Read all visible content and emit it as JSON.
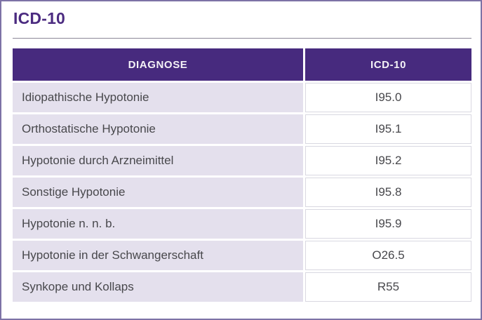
{
  "page": {
    "title": "ICD-10"
  },
  "colors": {
    "frame_border": "#7d72a6",
    "title_color": "#4b2b80",
    "divider_color": "#8c8798",
    "header_bg": "#472a7e",
    "header_text": "#f4f2f7",
    "row_bg": "#e4e0ed",
    "body_text": "#48484c",
    "code_cell_border": "#d9d8e1"
  },
  "table": {
    "columns": [
      {
        "label": "DIAGNOSE"
      },
      {
        "label": "ICD-10"
      }
    ],
    "rows": [
      {
        "diagnose": "Idiopathische Hypotonie",
        "icd10": "I95.0"
      },
      {
        "diagnose": "Orthostatische Hypotonie",
        "icd10": "I95.1"
      },
      {
        "diagnose": "Hypotonie durch Arzneimittel",
        "icd10": "I95.2"
      },
      {
        "diagnose": "Sonstige Hypotonie",
        "icd10": "I95.8"
      },
      {
        "diagnose": "Hypotonie n. n. b.",
        "icd10": "I95.9"
      },
      {
        "diagnose": "Hypotonie in der Schwangerschaft",
        "icd10": "O26.5"
      },
      {
        "diagnose": "Synkope und Kollaps",
        "icd10": "R55"
      }
    ]
  }
}
